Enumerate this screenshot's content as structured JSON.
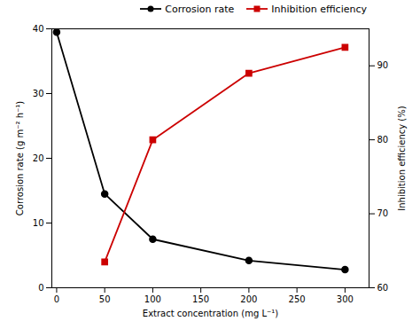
{
  "chart_data": {
    "type": "line",
    "xlabel": "Extract concentration (mg L⁻¹)",
    "ylabel": "Corrosion rate (g m⁻² h⁻¹)",
    "y2label": "Inhibition efficiency (%)",
    "x": [
      0,
      50,
      100,
      200,
      300
    ],
    "series": [
      {
        "name": "Corrosion rate",
        "color": "#000000",
        "marker": "circle",
        "values": [
          39.5,
          14.5,
          7.5,
          4.2,
          2.8
        ]
      },
      {
        "name": "Inhibition efficiency",
        "color": "#cc0000",
        "marker": "square",
        "axis": "y2",
        "values": [
          null,
          63.5,
          80.0,
          89.0,
          92.5
        ]
      }
    ],
    "xlim": [
      -5,
      325
    ],
    "xticks": [
      0,
      50,
      100,
      150,
      200,
      250,
      300
    ],
    "ylim": [
      0,
      40
    ],
    "yticks": [
      0,
      10,
      20,
      30,
      40
    ],
    "y2lim": [
      60,
      95
    ],
    "y2ticks": [
      60,
      70,
      80,
      90
    ],
    "grid": false,
    "legend": "upper right"
  }
}
